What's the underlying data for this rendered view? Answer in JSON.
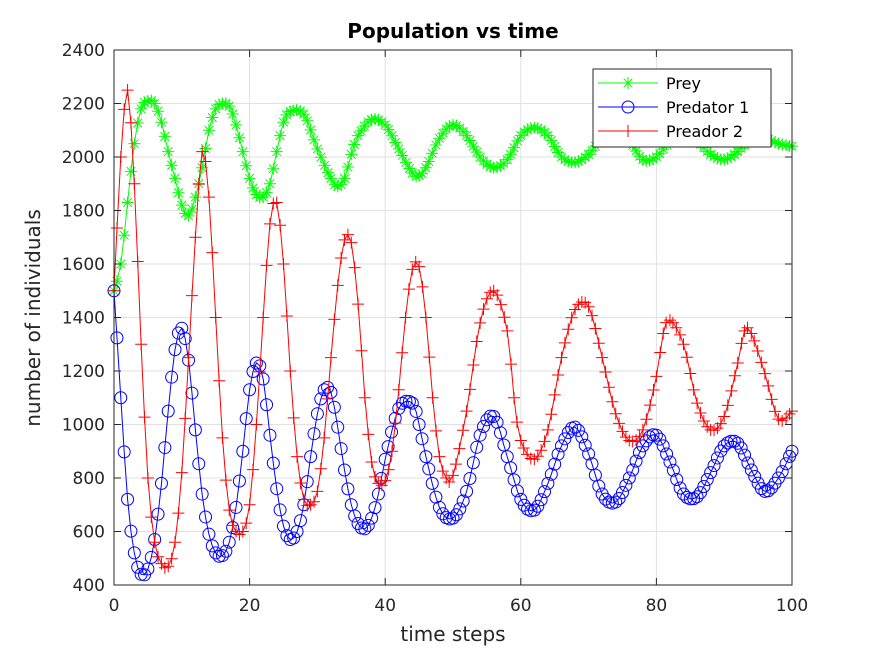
{
  "chart_data": {
    "type": "line",
    "title": "Population vs time",
    "xlabel": "time steps",
    "ylabel": "number of individuals",
    "xlim": [
      0,
      100
    ],
    "ylim": [
      400,
      2400
    ],
    "xticks": [
      0,
      20,
      40,
      60,
      80,
      100
    ],
    "yticks": [
      400,
      600,
      800,
      1000,
      1200,
      1400,
      1600,
      1800,
      2000,
      2200,
      2400
    ],
    "grid": true,
    "legend_position": "top-right",
    "series": [
      {
        "name": "Prey",
        "color": "#00ff00",
        "marker": "asterisk",
        "x": [
          0,
          1,
          2,
          3,
          4,
          5,
          6,
          7,
          8,
          9,
          10,
          11,
          12,
          13,
          14,
          15,
          16,
          17,
          18,
          19,
          20,
          21,
          22,
          23,
          24,
          25,
          26,
          28,
          30,
          32,
          33,
          34,
          35,
          36,
          38,
          40,
          42,
          44,
          45,
          46,
          48,
          50,
          52,
          54,
          56,
          58,
          60,
          62,
          64,
          66,
          68,
          70,
          72,
          74,
          76,
          78,
          80,
          82,
          84,
          86,
          88,
          90,
          92,
          94,
          96,
          98,
          100
        ],
        "values": [
          1500,
          1600,
          1830,
          2050,
          2180,
          2210,
          2200,
          2130,
          2020,
          1920,
          1820,
          1780,
          1850,
          1960,
          2100,
          2180,
          2200,
          2190,
          2120,
          2020,
          1920,
          1860,
          1850,
          1900,
          2020,
          2130,
          2170,
          2160,
          2030,
          1920,
          1890,
          1920,
          2010,
          2080,
          2140,
          2120,
          2030,
          1940,
          1930,
          1960,
          2070,
          2120,
          2080,
          2000,
          1960,
          1990,
          2080,
          2110,
          2080,
          2000,
          1980,
          2010,
          2070,
          2090,
          2060,
          1990,
          2000,
          2060,
          2080,
          2060,
          2010,
          1990,
          2020,
          2070,
          2070,
          2050,
          2040
        ]
      },
      {
        "name": "Predator 1",
        "color": "#0000ff",
        "marker": "circle",
        "x": [
          0,
          1,
          2,
          3,
          4,
          5,
          6,
          7,
          8,
          9,
          10,
          11,
          12,
          13,
          14,
          15,
          16,
          17,
          18,
          19,
          20,
          21,
          22,
          23,
          24,
          25,
          26,
          27,
          28,
          29,
          30,
          31,
          32,
          33,
          34,
          35,
          36,
          37,
          38,
          39,
          40,
          42,
          44,
          45,
          46,
          48,
          50,
          52,
          54,
          56,
          58,
          60,
          62,
          64,
          66,
          68,
          70,
          72,
          74,
          76,
          78,
          80,
          82,
          84,
          86,
          88,
          90,
          92,
          94,
          96,
          98,
          100
        ],
        "values": [
          1500,
          1100,
          720,
          520,
          440,
          460,
          570,
          780,
          1050,
          1280,
          1360,
          1240,
          980,
          740,
          590,
          520,
          510,
          560,
          690,
          900,
          1130,
          1230,
          1170,
          960,
          760,
          620,
          570,
          600,
          700,
          880,
          1040,
          1130,
          1120,
          990,
          830,
          700,
          630,
          610,
          650,
          740,
          870,
          1060,
          1080,
          1000,
          880,
          690,
          650,
          750,
          960,
          1030,
          880,
          720,
          680,
          780,
          920,
          990,
          890,
          740,
          710,
          800,
          920,
          960,
          860,
          740,
          730,
          820,
          920,
          930,
          830,
          750,
          800,
          900
        ]
      },
      {
        "name": "Preador 2",
        "color": "#ff0000",
        "marker": "plus",
        "x": [
          0,
          1,
          2,
          3,
          4,
          5,
          6,
          7,
          8,
          9,
          10,
          11,
          12,
          13,
          14,
          15,
          16,
          17,
          18,
          19,
          20,
          21,
          22,
          23,
          24,
          25,
          26,
          27,
          28,
          29,
          30,
          31,
          32,
          33,
          34,
          35,
          36,
          37,
          38,
          39,
          40,
          41,
          42,
          43,
          44,
          45,
          46,
          47,
          48,
          49,
          50,
          52,
          54,
          56,
          58,
          59,
          60,
          62,
          64,
          66,
          68,
          70,
          72,
          74,
          76,
          78,
          80,
          81,
          82,
          84,
          86,
          88,
          90,
          92,
          93,
          94,
          96,
          98,
          100
        ],
        "values": [
          1500,
          2000,
          2250,
          1900,
          1300,
          800,
          560,
          480,
          470,
          560,
          820,
          1250,
          1700,
          2020,
          1850,
          1400,
          950,
          680,
          600,
          600,
          700,
          1000,
          1400,
          1750,
          1830,
          1600,
          1200,
          880,
          720,
          700,
          750,
          950,
          1250,
          1520,
          1690,
          1680,
          1450,
          1100,
          860,
          780,
          790,
          900,
          1130,
          1400,
          1580,
          1590,
          1400,
          1100,
          880,
          800,
          810,
          1050,
          1380,
          1500,
          1350,
          1100,
          940,
          870,
          980,
          1250,
          1430,
          1440,
          1250,
          1040,
          940,
          980,
          1180,
          1340,
          1390,
          1300,
          1080,
          980,
          1030,
          1230,
          1350,
          1340,
          1190,
          1020,
          1050
        ]
      }
    ]
  }
}
